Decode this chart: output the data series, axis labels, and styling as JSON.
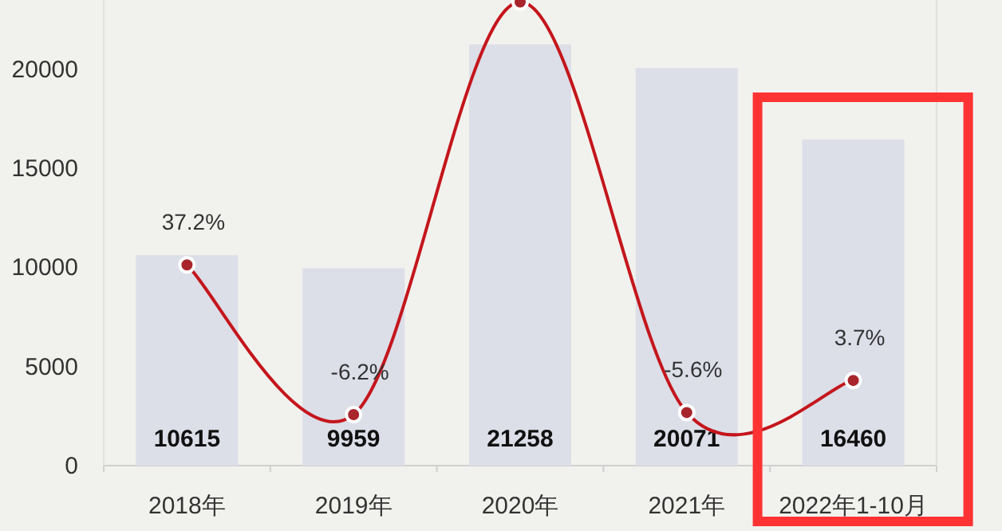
{
  "chart_data": {
    "type": "bar",
    "categories": [
      "2018年",
      "2019年",
      "2020年",
      "2021年",
      "2022年1-10月"
    ],
    "series": [
      {
        "color": "#dcdee8",
        "values": [
          10615,
          9959,
          21258,
          20071,
          16460
        ],
        "data_labels": true
      },
      {
        "type": "line",
        "axis": "y2",
        "color": "#c4161c",
        "marker": "circle",
        "values": [
          37.2,
          -6.2,
          113.4,
          -5.6,
          3.7
        ],
        "value_labels": [
          "37.2%",
          "-6.2%",
          null,
          "-5.6%",
          "3.7%"
        ]
      }
    ],
    "ylim": [
      0,
      23500
    ],
    "yticks": [
      0,
      5000,
      10000,
      15000,
      20000
    ],
    "y2lim": [
      -21,
      114
    ]
  }
}
